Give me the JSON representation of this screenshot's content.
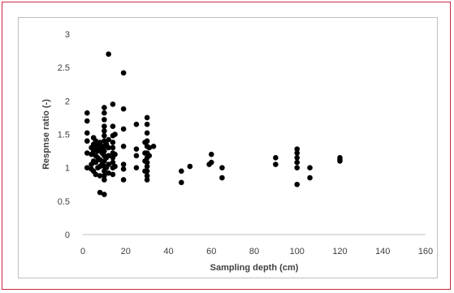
{
  "chart_data": {
    "type": "scatter",
    "title": "",
    "xlabel": "Sampling depth (cm)",
    "ylabel": "Respnse ratio (-)",
    "xlim": [
      0,
      160
    ],
    "ylim": [
      0,
      3
    ],
    "x_ticks": [
      0,
      20,
      40,
      60,
      80,
      100,
      120,
      140,
      160
    ],
    "y_ticks": [
      0,
      0.5,
      1,
      1.5,
      2,
      2.5,
      3
    ],
    "grid": false,
    "legend": "none",
    "marker_color": "#000000",
    "series": [
      {
        "points": [
          [
            2,
            1.82
          ],
          [
            2,
            1.7
          ],
          [
            2,
            1.52
          ],
          [
            2,
            1.4
          ],
          [
            2,
            1.22
          ],
          [
            2,
            1.0
          ],
          [
            4,
            1.3
          ],
          [
            4,
            1.2
          ],
          [
            4,
            1.05
          ],
          [
            4,
            0.98
          ],
          [
            5,
            1.45
          ],
          [
            5,
            1.35
          ],
          [
            5,
            1.25
          ],
          [
            5,
            1.1
          ],
          [
            5,
            0.95
          ],
          [
            6,
            1.4
          ],
          [
            6,
            1.3
          ],
          [
            6,
            1.18
          ],
          [
            6,
            1.08
          ],
          [
            6,
            0.9
          ],
          [
            7,
            1.35
          ],
          [
            7,
            1.25
          ],
          [
            7,
            1.15
          ],
          [
            7,
            1.0
          ],
          [
            8,
            1.38
          ],
          [
            8,
            1.28
          ],
          [
            8,
            1.12
          ],
          [
            8,
            1.02
          ],
          [
            8,
            0.88
          ],
          [
            8,
            0.63
          ],
          [
            9,
            1.32
          ],
          [
            9,
            1.22
          ],
          [
            9,
            1.05
          ],
          [
            10,
            1.9
          ],
          [
            10,
            1.82
          ],
          [
            10,
            1.72
          ],
          [
            10,
            1.62
          ],
          [
            10,
            1.55
          ],
          [
            10,
            1.48
          ],
          [
            10,
            1.4
          ],
          [
            10,
            1.32
          ],
          [
            10,
            1.25
          ],
          [
            10,
            1.18
          ],
          [
            10,
            1.1
          ],
          [
            10,
            1.02
          ],
          [
            10,
            0.95
          ],
          [
            10,
            0.88
          ],
          [
            10,
            0.82
          ],
          [
            10,
            0.6
          ],
          [
            11,
            1.35
          ],
          [
            11,
            1.15
          ],
          [
            11,
            1.0
          ],
          [
            12,
            2.7
          ],
          [
            12,
            1.42
          ],
          [
            12,
            1.3
          ],
          [
            12,
            1.18
          ],
          [
            12,
            1.05
          ],
          [
            12,
            0.92
          ],
          [
            14,
            1.95
          ],
          [
            14,
            1.62
          ],
          [
            14,
            1.48
          ],
          [
            14,
            1.38
          ],
          [
            14,
            1.3
          ],
          [
            14,
            1.22
          ],
          [
            14,
            1.15
          ],
          [
            14,
            1.08
          ],
          [
            14,
            1.0
          ],
          [
            14,
            0.9
          ],
          [
            15,
            1.5
          ],
          [
            15,
            1.2
          ],
          [
            15,
            1.02
          ],
          [
            19,
            2.42
          ],
          [
            19,
            1.88
          ],
          [
            19,
            1.58
          ],
          [
            19,
            1.32
          ],
          [
            19,
            1.05
          ],
          [
            19,
            0.98
          ],
          [
            19,
            0.82
          ],
          [
            25,
            1.65
          ],
          [
            25,
            1.28
          ],
          [
            25,
            1.18
          ],
          [
            25,
            1.0
          ],
          [
            29,
            1.38
          ],
          [
            29,
            1.22
          ],
          [
            29,
            1.1
          ],
          [
            29,
            0.95
          ],
          [
            30,
            1.75
          ],
          [
            30,
            1.65
          ],
          [
            30,
            1.52
          ],
          [
            30,
            1.4
          ],
          [
            30,
            1.32
          ],
          [
            30,
            1.22
          ],
          [
            30,
            1.15
          ],
          [
            30,
            1.08
          ],
          [
            30,
            1.02
          ],
          [
            30,
            0.95
          ],
          [
            30,
            0.88
          ],
          [
            30,
            0.82
          ],
          [
            31,
            1.3
          ],
          [
            31,
            1.18
          ],
          [
            33,
            1.32
          ],
          [
            46,
            0.95
          ],
          [
            46,
            0.78
          ],
          [
            50,
            1.02
          ],
          [
            59,
            1.05
          ],
          [
            60,
            1.2
          ],
          [
            60,
            1.08
          ],
          [
            65,
            1.0
          ],
          [
            65,
            0.85
          ],
          [
            90,
            1.15
          ],
          [
            90,
            1.05
          ],
          [
            100,
            1.28
          ],
          [
            100,
            1.22
          ],
          [
            100,
            1.15
          ],
          [
            100,
            1.08
          ],
          [
            100,
            1.0
          ],
          [
            100,
            0.75
          ],
          [
            106,
            1.0
          ],
          [
            106,
            0.85
          ],
          [
            120,
            1.15
          ],
          [
            120,
            1.12
          ],
          [
            120,
            1.1
          ]
        ]
      }
    ]
  }
}
